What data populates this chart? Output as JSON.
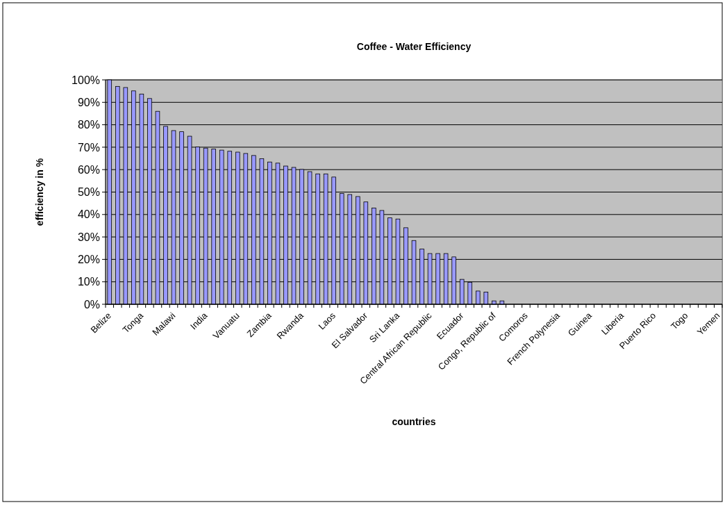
{
  "chart_data": {
    "type": "bar",
    "title": "Coffee - Water Efficiency",
    "xlabel": "countries",
    "ylabel": "efficiency in %",
    "categories": [
      "Belize",
      null,
      null,
      null,
      "Tonga",
      null,
      null,
      null,
      "Malawi",
      null,
      null,
      null,
      "India",
      null,
      null,
      null,
      "Vanuatu",
      null,
      null,
      null,
      "Zambia",
      null,
      null,
      null,
      "Rwanda",
      null,
      null,
      null,
      "Laos",
      null,
      null,
      null,
      "El Salvador",
      null,
      null,
      null,
      "Sri Lanka",
      null,
      null,
      null,
      "Central African Republic",
      null,
      null,
      null,
      "Ecuador",
      null,
      null,
      null,
      "Congo, Republic of",
      null,
      null,
      null,
      "Comoros",
      null,
      null,
      null,
      "French Polynesia",
      null,
      null,
      null,
      "Guinea",
      null,
      null,
      null,
      "Liberia",
      null,
      null,
      null,
      "Puerto Rico",
      null,
      null,
      null,
      "Togo",
      null,
      null,
      null,
      "Yemen"
    ],
    "values": [
      100,
      97.1,
      96.6,
      95.1,
      93.7,
      91.7,
      86,
      79.3,
      77.4,
      76.9,
      74.9,
      70.1,
      69.6,
      69.2,
      68.7,
      68.2,
      67.8,
      67.2,
      66.3,
      64.9,
      63.4,
      62.9,
      61.6,
      61,
      60.1,
      59.1,
      58.1,
      58.1,
      56.7,
      49.4,
      48.9,
      48,
      45.6,
      42.9,
      41.8,
      38.5,
      38,
      34.1,
      28.4,
      24.6,
      22.6,
      22.6,
      22.6,
      21.1,
      11.1,
      9.8,
      5.9,
      5.4,
      1.5,
      1.5,
      0,
      0,
      0,
      0,
      0,
      0,
      0,
      0,
      0,
      0,
      0,
      0,
      0,
      0,
      0,
      0,
      0,
      0,
      0,
      0,
      0,
      0,
      0,
      0,
      0,
      0,
      0
    ],
    "color": "#9999ff",
    "ylim": [
      0,
      100
    ],
    "yticks": [
      {
        "value": 0,
        "label": "0%"
      },
      {
        "value": 10,
        "label": "10%"
      },
      {
        "value": 20,
        "label": "20%"
      },
      {
        "value": 30,
        "label": "30%"
      },
      {
        "value": 40,
        "label": "40%"
      },
      {
        "value": 50,
        "label": "50%"
      },
      {
        "value": 60,
        "label": "60%"
      },
      {
        "value": 70,
        "label": "70%"
      },
      {
        "value": 80,
        "label": "80%"
      },
      {
        "value": 90,
        "label": "90%"
      },
      {
        "value": 100,
        "label": "100%"
      }
    ],
    "grid": "y"
  }
}
